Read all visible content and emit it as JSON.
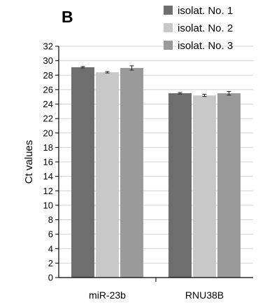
{
  "panel_label": "B",
  "chart_data": {
    "type": "bar",
    "title": "",
    "xlabel": "",
    "ylabel": "Ct values",
    "ylim": [
      0,
      32
    ],
    "ytick_step": 2,
    "grid": true,
    "legend_position": "top-right",
    "categories": [
      "miR-23b",
      "RNU38B"
    ],
    "series": [
      {
        "name": "isolat. No. 1",
        "color": "#6e6e6e",
        "values": [
          29.1,
          25.5
        ],
        "errors": [
          0.1,
          0.1
        ]
      },
      {
        "name": "isolat. No. 2",
        "color": "#c8c8c8",
        "values": [
          28.4,
          25.2
        ],
        "errors": [
          0.1,
          0.15
        ]
      },
      {
        "name": "isolat. No. 3",
        "color": "#9a9a9a",
        "values": [
          29.0,
          25.5
        ],
        "errors": [
          0.3,
          0.25
        ]
      }
    ]
  }
}
